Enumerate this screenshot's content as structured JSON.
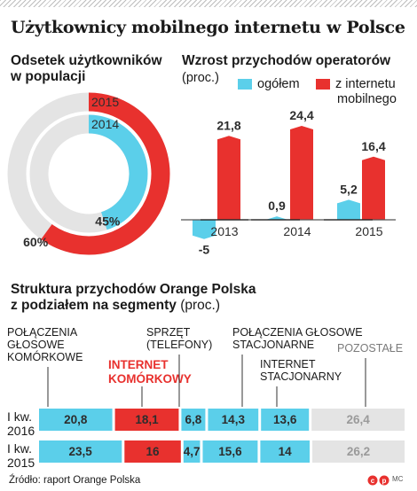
{
  "title": "Użytkownicy mobilnego internetu w Polsce",
  "source": "Źródło: raport Orange Polska",
  "credit": "MC",
  "colors": {
    "red": "#e8312e",
    "cyan": "#5bcfea",
    "gray": "#e4e4e4",
    "dark": "#2d2d2d"
  },
  "chart_data": [
    {
      "type": "pie",
      "title_line1": "Odsetek użytkowników",
      "title_line2": "w populacji",
      "series": [
        {
          "name": "2015",
          "value": 60,
          "label": "60%"
        },
        {
          "name": "2014",
          "value": 45,
          "label": "45%"
        }
      ],
      "max": 100
    },
    {
      "type": "bar",
      "title": "Wzrost przychodów operatorów",
      "subtitle": "(proc.)",
      "categories": [
        "2013",
        "2014",
        "2015"
      ],
      "series": [
        {
          "name": "ogółem",
          "values": [
            -5,
            0.9,
            5.2
          ],
          "labels": [
            "-5",
            "0,9",
            "5,2"
          ]
        },
        {
          "name_line1": "z internetu",
          "name_line2": "mobilnego",
          "values": [
            21.8,
            24.4,
            16.4
          ],
          "labels": [
            "21,8",
            "24,4",
            "16,4"
          ]
        }
      ]
    },
    {
      "type": "bar",
      "stacked": true,
      "orientation": "horizontal",
      "title_line1": "Struktura przychodów Orange Polska",
      "title_line2": "z podziałem na segmenty",
      "subtitle": "(proc.)",
      "segments": [
        {
          "label_lines": [
            "POŁĄCZENIA",
            "GŁOSOWE",
            "KOMÓRKOWE"
          ],
          "color": "cyan"
        },
        {
          "label_lines": [
            "INTERNET",
            "KOMÓRKOWY"
          ],
          "color": "red"
        },
        {
          "label_lines": [
            "SPRZĘT",
            "(TELEFONY)"
          ],
          "color": "cyan"
        },
        {
          "label_lines": [
            "POŁĄCZENIA GŁOSOWE",
            "STACJONARNE"
          ],
          "color": "cyan"
        },
        {
          "label_lines": [
            "INTERNET",
            "STACJONARNY"
          ],
          "color": "cyan"
        },
        {
          "label_lines": [
            "POZOSTAŁE"
          ],
          "color": "gray"
        }
      ],
      "rows": [
        {
          "label_line1": "I kw.",
          "label_line2": "2016",
          "values": [
            20.8,
            18.1,
            6.8,
            14.3,
            13.6,
            26.4
          ],
          "labels": [
            "20,8",
            "18,1",
            "6,8",
            "14,3",
            "13,6",
            "26,4"
          ]
        },
        {
          "label_line1": "I kw.",
          "label_line2": "2015",
          "values": [
            23.5,
            16,
            4.7,
            15.6,
            14,
            26.2
          ],
          "labels": [
            "23,5",
            "16",
            "4,7",
            "15,6",
            "14",
            "26,2"
          ]
        }
      ]
    }
  ]
}
